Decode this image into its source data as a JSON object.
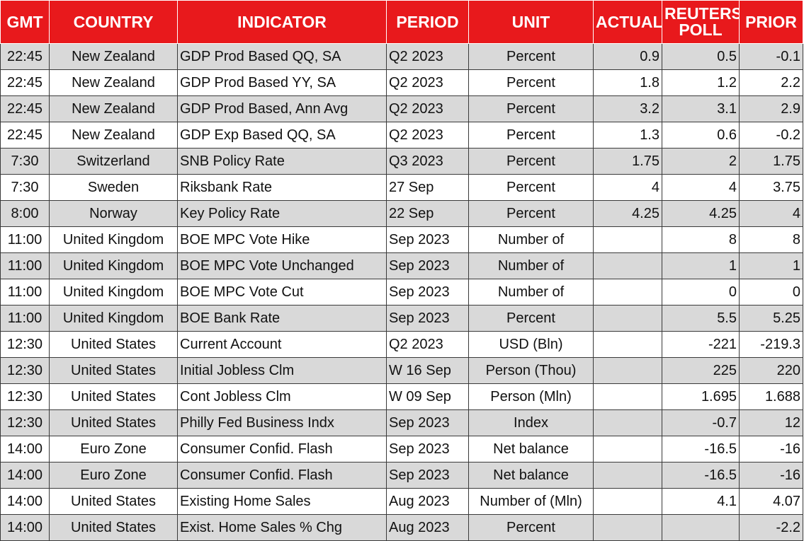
{
  "headers": {
    "gmt": "GMT",
    "country": "COUNTRY",
    "indicator": "INDICATOR",
    "period": "PERIOD",
    "unit": "UNIT",
    "actual": "ACTUAL",
    "poll_line1": "REUTERS",
    "poll_line2": "POLL",
    "prior": "PRIOR"
  },
  "rows": [
    {
      "gmt": "22:45",
      "country": "New Zealand",
      "indicator": "GDP Prod Based QQ, SA",
      "period": "Q2 2023",
      "unit": "Percent",
      "actual": "0.9",
      "poll": "0.5",
      "prior": "-0.1"
    },
    {
      "gmt": "22:45",
      "country": "New Zealand",
      "indicator": "GDP Prod Based YY, SA",
      "period": "Q2 2023",
      "unit": "Percent",
      "actual": "1.8",
      "poll": "1.2",
      "prior": "2.2"
    },
    {
      "gmt": "22:45",
      "country": "New Zealand",
      "indicator": "GDP Prod Based, Ann Avg",
      "period": "Q2 2023",
      "unit": "Percent",
      "actual": "3.2",
      "poll": "3.1",
      "prior": "2.9"
    },
    {
      "gmt": "22:45",
      "country": "New Zealand",
      "indicator": "GDP Exp Based QQ, SA",
      "period": "Q2 2023",
      "unit": "Percent",
      "actual": "1.3",
      "poll": "0.6",
      "prior": "-0.2"
    },
    {
      "gmt": "7:30",
      "country": "Switzerland",
      "indicator": "SNB Policy Rate",
      "period": "Q3 2023",
      "unit": "Percent",
      "actual": "1.75",
      "poll": "2",
      "prior": "1.75"
    },
    {
      "gmt": "7:30",
      "country": "Sweden",
      "indicator": "Riksbank Rate",
      "period": "27 Sep",
      "unit": "Percent",
      "actual": "4",
      "poll": "4",
      "prior": "3.75"
    },
    {
      "gmt": "8:00",
      "country": "Norway",
      "indicator": "Key Policy Rate",
      "period": "22 Sep",
      "unit": "Percent",
      "actual": "4.25",
      "poll": "4.25",
      "prior": "4"
    },
    {
      "gmt": "11:00",
      "country": "United Kingdom",
      "indicator": "BOE MPC Vote Hike",
      "period": "Sep 2023",
      "unit": "Number of",
      "actual": "",
      "poll": "8",
      "prior": "8"
    },
    {
      "gmt": "11:00",
      "country": "United Kingdom",
      "indicator": "BOE MPC Vote Unchanged",
      "period": "Sep 2023",
      "unit": "Number of",
      "actual": "",
      "poll": "1",
      "prior": "1"
    },
    {
      "gmt": "11:00",
      "country": "United Kingdom",
      "indicator": "BOE MPC Vote Cut",
      "period": "Sep 2023",
      "unit": "Number of",
      "actual": "",
      "poll": "0",
      "prior": "0"
    },
    {
      "gmt": "11:00",
      "country": "United Kingdom",
      "indicator": "BOE Bank Rate",
      "period": "Sep 2023",
      "unit": "Percent",
      "actual": "",
      "poll": "5.5",
      "prior": "5.25"
    },
    {
      "gmt": "12:30",
      "country": "United States",
      "indicator": "Current Account",
      "period": "Q2 2023",
      "unit": "USD (Bln)",
      "actual": "",
      "poll": "-221",
      "prior": "-219.3"
    },
    {
      "gmt": "12:30",
      "country": "United States",
      "indicator": "Initial Jobless Clm",
      "period": "W 16 Sep",
      "unit": "Person (Thou)",
      "actual": "",
      "poll": "225",
      "prior": "220"
    },
    {
      "gmt": "12:30",
      "country": "United States",
      "indicator": "Cont Jobless Clm",
      "period": "W 09 Sep",
      "unit": "Person (Mln)",
      "actual": "",
      "poll": "1.695",
      "prior": "1.688"
    },
    {
      "gmt": "12:30",
      "country": "United States",
      "indicator": "Philly Fed Business Indx",
      "period": "Sep 2023",
      "unit": "Index",
      "actual": "",
      "poll": "-0.7",
      "prior": "12"
    },
    {
      "gmt": "14:00",
      "country": "Euro Zone",
      "indicator": "Consumer Confid. Flash",
      "period": "Sep 2023",
      "unit": "Net balance",
      "actual": "",
      "poll": "-16.5",
      "prior": "-16"
    },
    {
      "gmt": "14:00",
      "country": "Euro Zone",
      "indicator": "Consumer Confid. Flash",
      "period": "Sep 2023",
      "unit": "Net balance",
      "actual": "",
      "poll": "-16.5",
      "prior": "-16"
    },
    {
      "gmt": "14:00",
      "country": "United States",
      "indicator": "Existing Home Sales",
      "period": "Aug 2023",
      "unit": "Number of (Mln)",
      "actual": "",
      "poll": "4.1",
      "prior": "4.07"
    },
    {
      "gmt": "14:00",
      "country": "United States",
      "indicator": "Exist. Home Sales % Chg",
      "period": "Aug 2023",
      "unit": "Percent",
      "actual": "",
      "poll": "",
      "prior": "-2.2"
    }
  ],
  "colors": {
    "header_bg": "#e8191c",
    "header_text": "#ffffff",
    "row_shade": "#d9d9d9",
    "row_plain": "#ffffff"
  }
}
